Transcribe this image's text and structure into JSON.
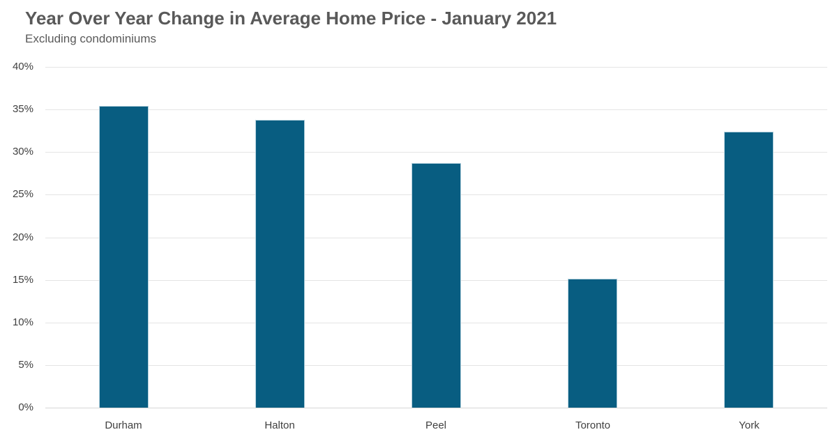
{
  "chart_data": {
    "type": "bar",
    "title": "Year Over Year Change in Average Home Price - January 2021",
    "subtitle": "Excluding condominiums",
    "categories": [
      "Durham",
      "Halton",
      "Peel",
      "Toronto",
      "York"
    ],
    "values": [
      35.4,
      33.8,
      28.7,
      15.1,
      32.4
    ],
    "value_unit": "%",
    "xlabel": "",
    "ylabel": "",
    "ylim": [
      0,
      40
    ],
    "yticks": [
      0,
      5,
      10,
      15,
      20,
      25,
      30,
      35,
      40
    ],
    "ytick_labels": [
      "0%",
      "5%",
      "10%",
      "15%",
      "20%",
      "25%",
      "30%",
      "35%",
      "40%"
    ],
    "grid": "horizontal",
    "legend": "none",
    "colors": {
      "bar_fill": "#085d81",
      "bar_edge": "#c4dbe5",
      "gridline": "#e4e4e4",
      "axis_line": "#d6d6d6",
      "title_text": "#595959",
      "subtitle_text": "#595959",
      "tick_text": "#404040",
      "background": "#ffffff"
    }
  }
}
